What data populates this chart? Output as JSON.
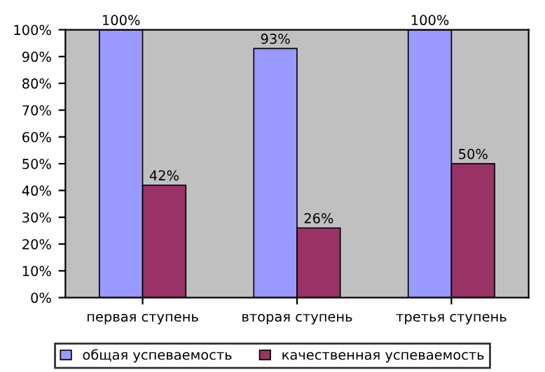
{
  "chart_data": {
    "type": "bar",
    "categories": [
      "первая ступень",
      "вторая ступень",
      "третья ступень"
    ],
    "series": [
      {
        "name": "общая успеваемость",
        "color": "#9999ff",
        "values": [
          100,
          93,
          100
        ],
        "value_labels": [
          "100%",
          "93%",
          "100%"
        ]
      },
      {
        "name": "качественная успеваемость",
        "color": "#993366",
        "values": [
          42,
          26,
          50
        ],
        "value_labels": [
          "42%",
          "26%",
          "50%"
        ]
      }
    ],
    "ylim": [
      0,
      100
    ],
    "yticks": [
      {
        "value": 0,
        "label": "0%"
      },
      {
        "value": 10,
        "label": "10%"
      },
      {
        "value": 20,
        "label": "20%"
      },
      {
        "value": 30,
        "label": "30%"
      },
      {
        "value": 40,
        "label": "40%"
      },
      {
        "value": 50,
        "label": "50%"
      },
      {
        "value": 60,
        "label": "60%"
      },
      {
        "value": 70,
        "label": "70%"
      },
      {
        "value": 80,
        "label": "80%"
      },
      {
        "value": 90,
        "label": "90%"
      },
      {
        "value": 100,
        "label": "100%"
      }
    ],
    "grid": false,
    "legend": "bottom"
  }
}
